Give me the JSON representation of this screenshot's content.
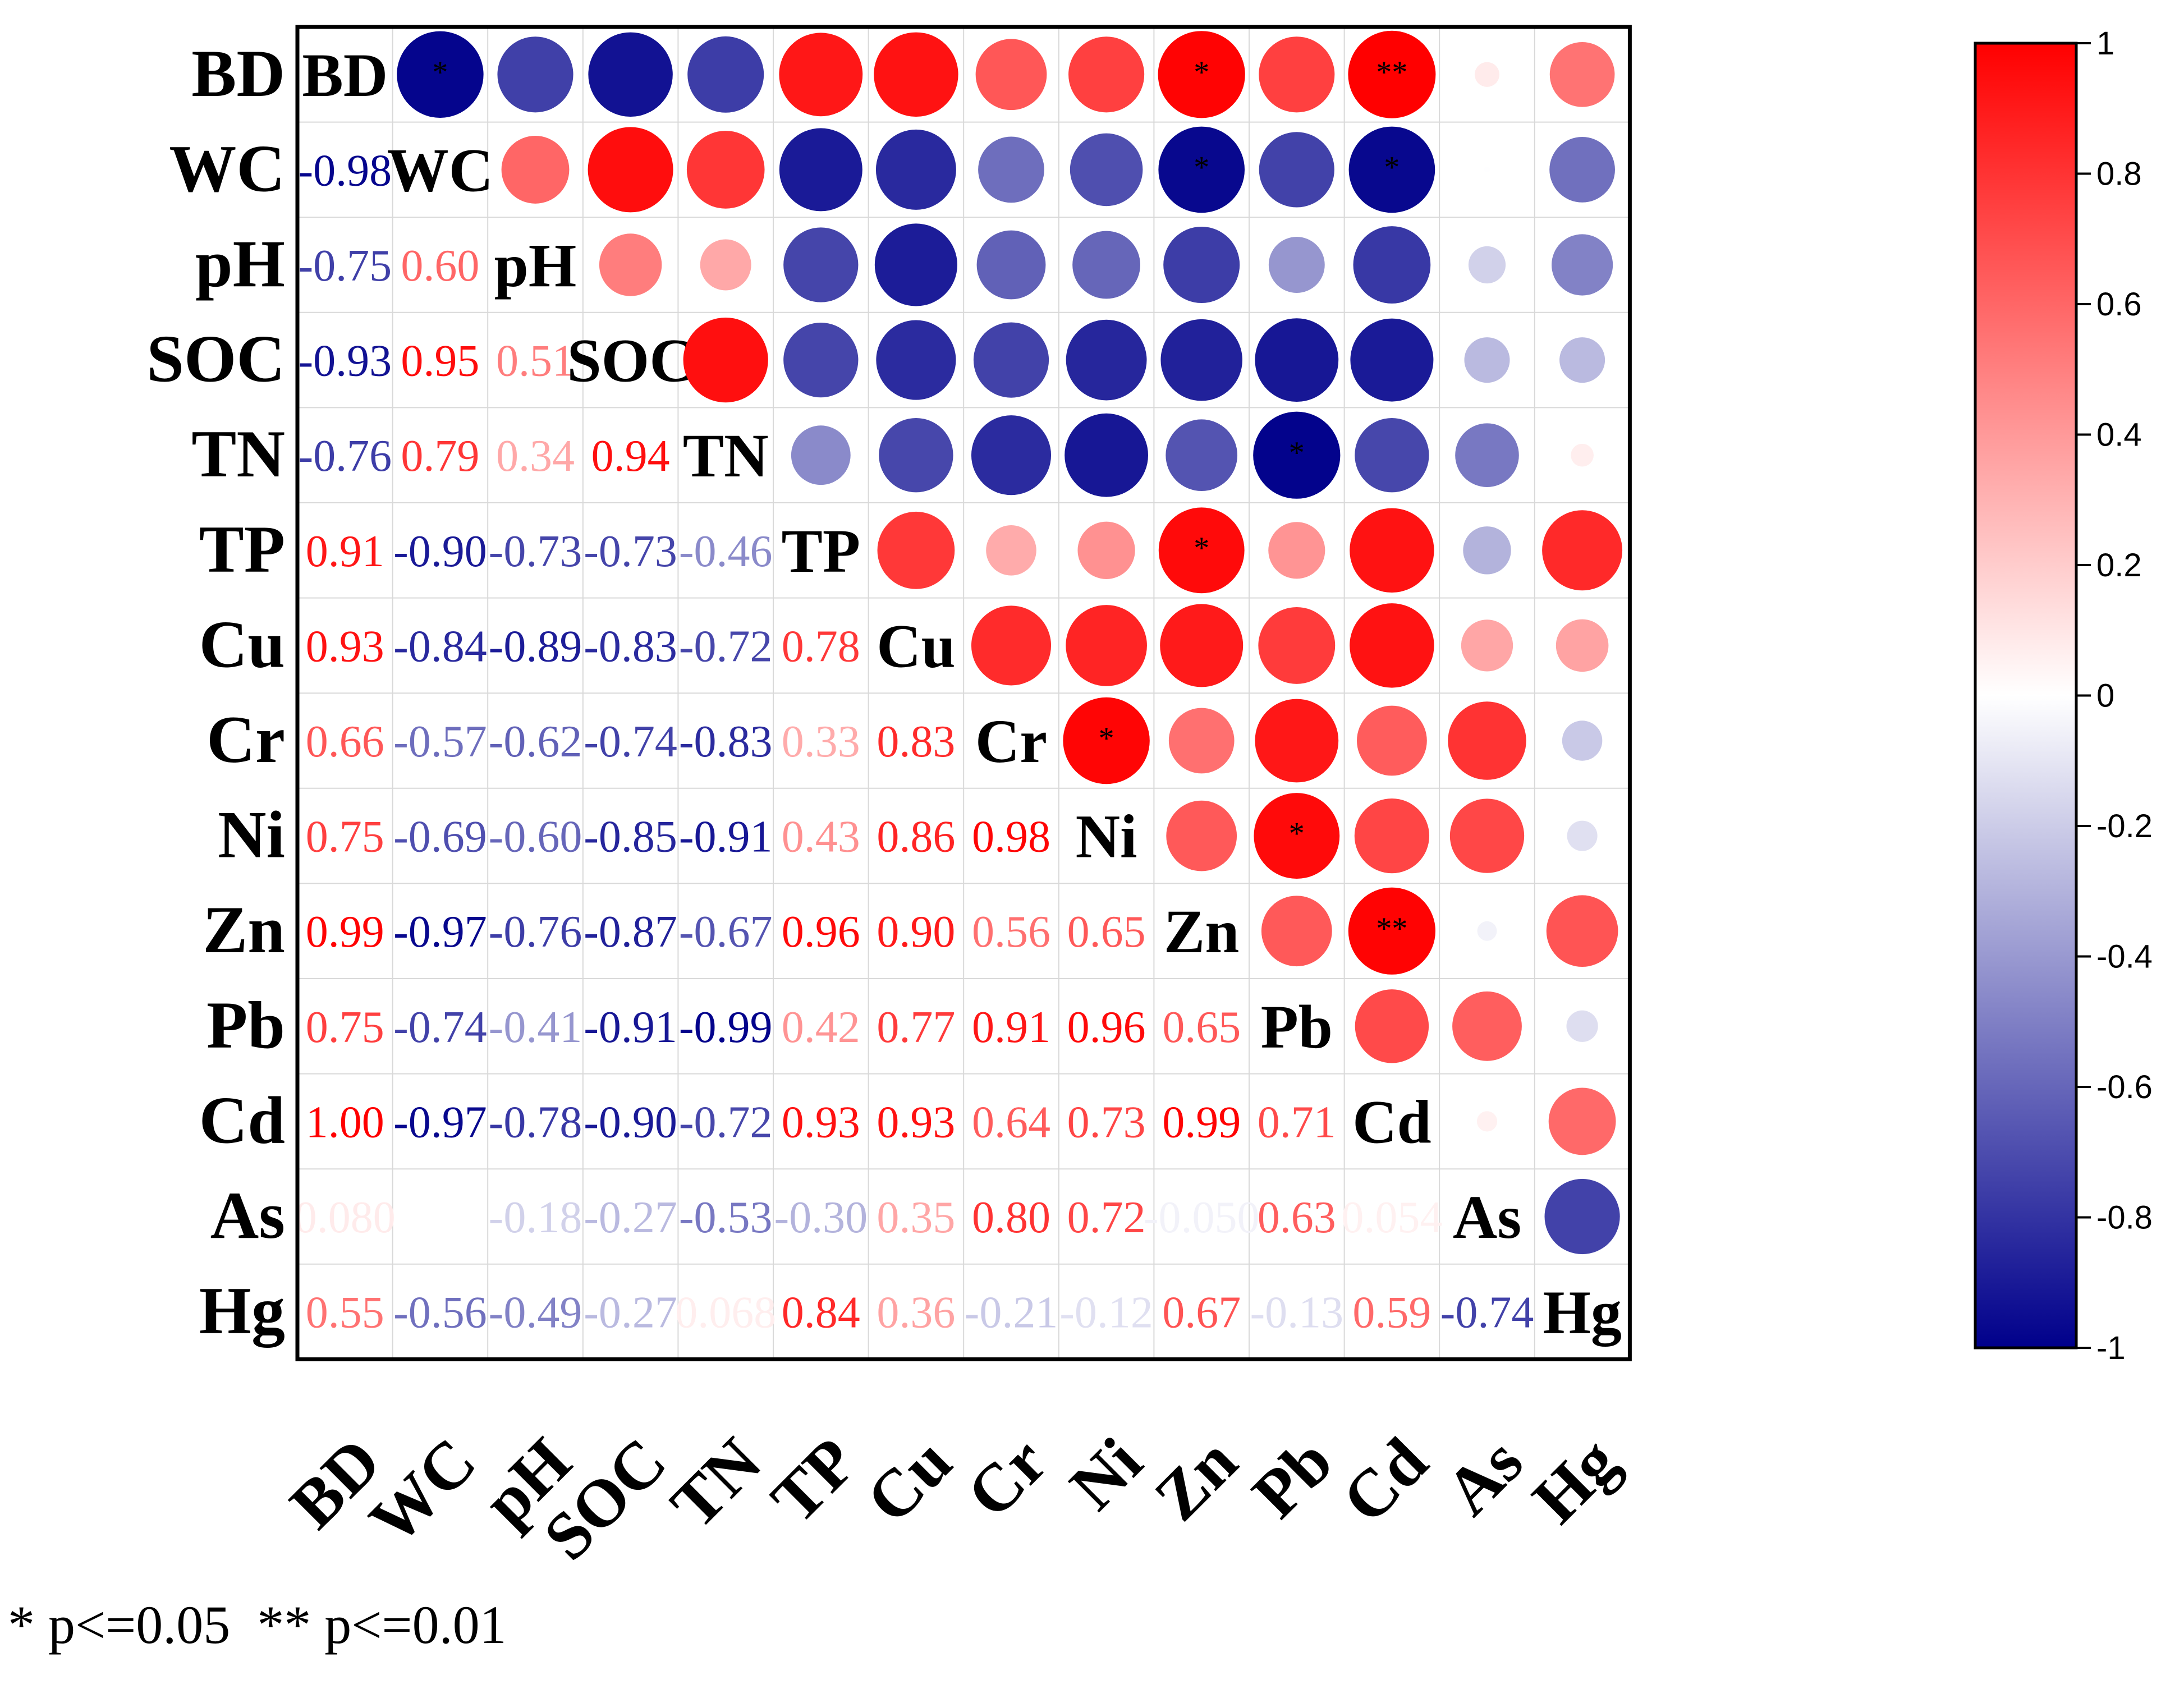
{
  "chart_data": {
    "type": "heatmap",
    "subtype": "correlation-matrix",
    "variables": [
      "BD",
      "WC",
      "pH",
      "SOC",
      "TN",
      "TP",
      "Cu",
      "Cr",
      "Ni",
      "Zn",
      "Pb",
      "Cd",
      "As",
      "Hg"
    ],
    "matrix": [
      [
        1,
        -0.98,
        -0.75,
        -0.93,
        -0.76,
        0.91,
        0.93,
        0.66,
        0.75,
        0.99,
        0.75,
        1.0,
        0.08,
        0.55
      ],
      [
        -0.98,
        1,
        0.6,
        0.95,
        0.79,
        -0.9,
        -0.84,
        -0.57,
        -0.69,
        -0.97,
        -0.74,
        -0.97,
        -0.004,
        -0.56
      ],
      [
        -0.75,
        0.6,
        1,
        0.51,
        0.34,
        -0.73,
        -0.89,
        -0.62,
        -0.6,
        -0.76,
        -0.41,
        -0.78,
        -0.18,
        -0.49
      ],
      [
        -0.93,
        0.95,
        0.51,
        1,
        0.94,
        -0.73,
        -0.83,
        -0.74,
        -0.85,
        -0.87,
        -0.91,
        -0.9,
        -0.27,
        -0.27
      ],
      [
        -0.76,
        0.79,
        0.34,
        0.94,
        1,
        -0.46,
        -0.72,
        -0.83,
        -0.91,
        -0.67,
        -0.99,
        -0.72,
        -0.53,
        0.068
      ],
      [
        0.91,
        -0.9,
        -0.73,
        -0.73,
        -0.46,
        1,
        0.78,
        0.33,
        0.43,
        0.96,
        0.42,
        0.93,
        -0.3,
        0.84
      ],
      [
        0.93,
        -0.84,
        -0.89,
        -0.83,
        -0.72,
        0.78,
        1,
        0.83,
        0.86,
        0.9,
        0.77,
        0.93,
        0.35,
        0.36
      ],
      [
        0.66,
        -0.57,
        -0.62,
        -0.74,
        -0.83,
        0.33,
        0.83,
        1,
        0.98,
        0.56,
        0.91,
        0.64,
        0.8,
        -0.21
      ],
      [
        0.75,
        -0.69,
        -0.6,
        -0.85,
        -0.91,
        0.43,
        0.86,
        0.98,
        1,
        0.65,
        0.96,
        0.73,
        0.72,
        -0.12
      ],
      [
        0.99,
        -0.97,
        -0.76,
        -0.87,
        -0.67,
        0.96,
        0.9,
        0.56,
        0.65,
        1,
        0.65,
        0.99,
        -0.05,
        0.67
      ],
      [
        0.75,
        -0.74,
        -0.41,
        -0.91,
        -0.99,
        0.42,
        0.77,
        0.91,
        0.96,
        0.65,
        1,
        0.71,
        0.63,
        -0.13
      ],
      [
        1.0,
        -0.97,
        -0.78,
        -0.9,
        -0.72,
        0.93,
        0.93,
        0.64,
        0.73,
        0.99,
        0.71,
        1,
        0.054,
        0.59
      ],
      [
        0.08,
        -0.004,
        -0.18,
        -0.27,
        -0.53,
        -0.3,
        0.35,
        0.8,
        0.72,
        -0.05,
        0.63,
        0.054,
        1,
        -0.74
      ],
      [
        0.55,
        -0.56,
        -0.49,
        -0.27,
        0.068,
        0.84,
        0.36,
        -0.21,
        -0.12,
        0.67,
        -0.13,
        0.59,
        -0.74,
        1
      ]
    ],
    "lower_labels": [
      [
        null,
        null,
        null,
        null,
        null,
        null,
        null,
        null,
        null,
        null,
        null,
        null,
        null,
        null
      ],
      [
        "-0.98",
        null,
        null,
        null,
        null,
        null,
        null,
        null,
        null,
        null,
        null,
        null,
        null,
        null
      ],
      [
        "-0.75",
        "0.60",
        null,
        null,
        null,
        null,
        null,
        null,
        null,
        null,
        null,
        null,
        null,
        null
      ],
      [
        "-0.93",
        "0.95",
        "0.51",
        null,
        null,
        null,
        null,
        null,
        null,
        null,
        null,
        null,
        null,
        null
      ],
      [
        "-0.76",
        "0.79",
        "0.34",
        "0.94",
        null,
        null,
        null,
        null,
        null,
        null,
        null,
        null,
        null,
        null
      ],
      [
        "0.91",
        "-0.90",
        "-0.73",
        "-0.73",
        "-0.46",
        null,
        null,
        null,
        null,
        null,
        null,
        null,
        null,
        null
      ],
      [
        "0.93",
        "-0.84",
        "-0.89",
        "-0.83",
        "-0.72",
        "0.78",
        null,
        null,
        null,
        null,
        null,
        null,
        null,
        null
      ],
      [
        "0.66",
        "-0.57",
        "-0.62",
        "-0.74",
        "-0.83",
        "0.33",
        "0.83",
        null,
        null,
        null,
        null,
        null,
        null,
        null
      ],
      [
        "0.75",
        "-0.69",
        "-0.60",
        "-0.85",
        "-0.91",
        "0.43",
        "0.86",
        "0.98",
        null,
        null,
        null,
        null,
        null,
        null
      ],
      [
        "0.99",
        "-0.97",
        "-0.76",
        "-0.87",
        "-0.67",
        "0.96",
        "0.90",
        "0.56",
        "0.65",
        null,
        null,
        null,
        null,
        null
      ],
      [
        "0.75",
        "-0.74",
        "-0.41",
        "-0.91",
        "-0.99",
        "0.42",
        "0.77",
        "0.91",
        "0.96",
        "0.65",
        null,
        null,
        null,
        null
      ],
      [
        "1.00",
        "-0.97",
        "-0.78",
        "-0.90",
        "-0.72",
        "0.93",
        "0.93",
        "0.64",
        "0.73",
        "0.99",
        "0.71",
        null,
        null,
        null
      ],
      [
        "0.080",
        "",
        "-0.18",
        "-0.27",
        "-0.53",
        "-0.30",
        "0.35",
        "0.80",
        "0.72",
        "-0.050",
        "0.63",
        "0.054",
        null,
        null
      ],
      [
        "0.55",
        "-0.56",
        "-0.49",
        "-0.27",
        "0.068",
        "0.84",
        "0.36",
        "-0.21",
        "-0.12",
        "0.67",
        "-0.13",
        "0.59",
        "-0.74",
        null
      ]
    ],
    "significance": [
      {
        "row": "BD",
        "col": "WC",
        "mark": "*"
      },
      {
        "row": "BD",
        "col": "Zn",
        "mark": "*"
      },
      {
        "row": "BD",
        "col": "Cd",
        "mark": "**"
      },
      {
        "row": "WC",
        "col": "Zn",
        "mark": "*"
      },
      {
        "row": "WC",
        "col": "Cd",
        "mark": "*"
      },
      {
        "row": "TN",
        "col": "Pb",
        "mark": "*"
      },
      {
        "row": "TP",
        "col": "Zn",
        "mark": "*"
      },
      {
        "row": "Cr",
        "col": "Ni",
        "mark": "*"
      },
      {
        "row": "Ni",
        "col": "Pb",
        "mark": "*"
      },
      {
        "row": "Zn",
        "col": "Cd",
        "mark": "**"
      }
    ],
    "colorbar": {
      "range": [
        -1,
        1
      ],
      "ticks": [
        "1",
        "0.8",
        "0.6",
        "0.4",
        "0.2",
        "0",
        "-0.2",
        "-0.4",
        "-0.6",
        "-0.8",
        "-1"
      ],
      "tick_values": [
        1,
        0.8,
        0.6,
        0.4,
        0.2,
        0,
        -0.2,
        -0.4,
        -0.6,
        -0.8,
        -1
      ],
      "color_high": "#ff0000",
      "color_mid": "#ffffff",
      "color_low": "#00008b"
    },
    "upper_glyph": "circle",
    "lower_glyph": "number",
    "diagonal": "variable-name"
  },
  "footnote": "* p<=0.05  ** p<=0.01"
}
